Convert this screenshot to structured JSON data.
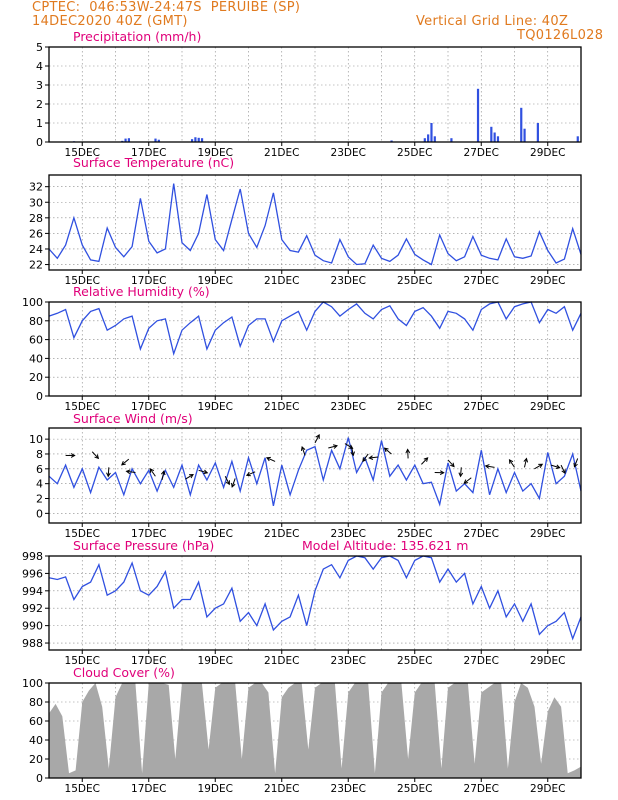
{
  "header": {
    "line1_left": "CPTEC:  046:53W-24:47S  PERUIBE (SP)",
    "line2_left": "14DEC2020 40Z (GMT)",
    "line1_right": "Vertical Grid Line: 40Z",
    "line2_right": "TQ0126L028"
  },
  "colors": {
    "title": "#e0007a",
    "header": "#e07a1f",
    "series": "#3050e0",
    "cloud": "#a8a8a8",
    "grid": "#888888"
  },
  "x_axis": {
    "start": "14DEC2020",
    "end": "29DEC2020",
    "tick_labels": [
      "15DEC",
      "17DEC",
      "19DEC",
      "21DEC",
      "23DEC",
      "25DEC",
      "27DEC",
      "29DEC"
    ]
  },
  "chart_data": [
    {
      "name": "precipitation",
      "type": "bar",
      "title": "Precipitation (mm/h)",
      "ylim": [
        0,
        5
      ],
      "yticks": [
        0,
        1,
        2,
        3,
        4,
        5
      ],
      "x_unit": "days since 14DEC 00Z",
      "points": [
        [
          0.75,
          0.04
        ],
        [
          2.2,
          0.06
        ],
        [
          2.3,
          0.18
        ],
        [
          2.4,
          0.2
        ],
        [
          3.2,
          0.18
        ],
        [
          3.3,
          0.12
        ],
        [
          4.3,
          0.15
        ],
        [
          4.4,
          0.25
        ],
        [
          4.5,
          0.22
        ],
        [
          4.6,
          0.2
        ],
        [
          10.3,
          0.08
        ],
        [
          11.3,
          0.2
        ],
        [
          11.4,
          0.4
        ],
        [
          11.5,
          1.0
        ],
        [
          11.6,
          0.3
        ],
        [
          12.1,
          0.2
        ],
        [
          12.9,
          2.8
        ],
        [
          13.3,
          0.8
        ],
        [
          13.4,
          0.5
        ],
        [
          13.5,
          0.3
        ],
        [
          14.2,
          1.8
        ],
        [
          14.3,
          0.7
        ],
        [
          14.7,
          1.0
        ],
        [
          15.9,
          0.3
        ]
      ]
    },
    {
      "name": "temperature",
      "type": "line",
      "title": "Surface Temperature (nC)",
      "ylim": [
        21.3,
        33.5
      ],
      "yticks": [
        22,
        24,
        26,
        28,
        30,
        32
      ],
      "x": [
        0,
        0.25,
        0.5,
        0.75,
        1.0,
        1.25,
        1.5,
        1.75,
        2.0,
        2.25,
        2.5,
        2.75,
        3.0,
        3.25,
        3.5,
        3.75,
        4.0,
        4.25,
        4.5,
        4.75,
        5.0,
        5.25,
        5.5,
        5.75,
        6.0,
        6.25,
        6.5,
        6.75,
        7.0,
        7.25,
        7.5,
        7.75,
        8.0,
        8.25,
        8.5,
        8.75,
        9.0,
        9.25,
        9.5,
        9.75,
        10.0,
        10.25,
        10.5,
        10.75,
        11.0,
        11.25,
        11.5,
        11.75,
        12.0,
        12.25,
        12.5,
        12.75,
        13.0,
        13.25,
        13.5,
        13.75,
        14.0,
        14.25,
        14.5,
        14.75,
        15.0,
        15.25,
        15.5,
        15.75,
        16.0
      ],
      "y": [
        24.0,
        22.8,
        24.5,
        28.0,
        24.5,
        22.6,
        22.4,
        26.7,
        24.2,
        23.0,
        24.3,
        30.5,
        25.0,
        23.5,
        24.0,
        32.4,
        24.8,
        23.8,
        26.0,
        31.0,
        25.2,
        23.8,
        27.8,
        31.7,
        26.0,
        24.2,
        27.0,
        31.2,
        25.2,
        23.8,
        23.6,
        25.7,
        23.2,
        22.5,
        22.2,
        25.2,
        23.0,
        22.0,
        22.1,
        24.5,
        22.8,
        22.4,
        23.2,
        25.3,
        23.3,
        22.6,
        22.0,
        25.8,
        23.4,
        22.5,
        23.0,
        25.6,
        23.2,
        22.8,
        22.6,
        25.3,
        23.0,
        22.8,
        23.1,
        26.2,
        23.8,
        22.2,
        22.7,
        26.6,
        23.3
      ]
    },
    {
      "name": "humidity",
      "type": "line",
      "title": "Relative Humidity (%)",
      "ylim": [
        0,
        100
      ],
      "yticks": [
        0,
        20,
        40,
        60,
        80,
        100
      ],
      "x": [
        0,
        0.25,
        0.5,
        0.75,
        1.0,
        1.25,
        1.5,
        1.75,
        2.0,
        2.25,
        2.5,
        2.75,
        3.0,
        3.25,
        3.5,
        3.75,
        4.0,
        4.25,
        4.5,
        4.75,
        5.0,
        5.25,
        5.5,
        5.75,
        6.0,
        6.25,
        6.5,
        6.75,
        7.0,
        7.25,
        7.5,
        7.75,
        8.0,
        8.25,
        8.5,
        8.75,
        9.0,
        9.25,
        9.5,
        9.75,
        10.0,
        10.25,
        10.5,
        10.75,
        11.0,
        11.25,
        11.5,
        11.75,
        12.0,
        12.25,
        12.5,
        12.75,
        13.0,
        13.25,
        13.5,
        13.75,
        14.0,
        14.25,
        14.5,
        14.75,
        15.0,
        15.25,
        15.5,
        15.75,
        16.0
      ],
      "y": [
        85,
        88,
        92,
        62,
        80,
        90,
        93,
        70,
        75,
        82,
        85,
        50,
        72,
        80,
        82,
        45,
        70,
        78,
        85,
        50,
        70,
        78,
        84,
        53,
        75,
        82,
        82,
        58,
        80,
        85,
        90,
        70,
        90,
        100,
        95,
        85,
        92,
        98,
        88,
        82,
        92,
        96,
        82,
        75,
        90,
        94,
        85,
        72,
        90,
        88,
        82,
        70,
        92,
        98,
        100,
        82,
        95,
        98,
        100,
        78,
        92,
        88,
        95,
        70,
        88
      ]
    },
    {
      "name": "wind",
      "type": "line",
      "title": "Surface Wind (m/s)",
      "ylim": [
        -1.3,
        11.5
      ],
      "yticks": [
        0,
        2,
        4,
        6,
        8,
        10
      ],
      "x": [
        0,
        0.25,
        0.5,
        0.75,
        1.0,
        1.25,
        1.5,
        1.75,
        2.0,
        2.25,
        2.5,
        2.75,
        3.0,
        3.25,
        3.5,
        3.75,
        4.0,
        4.25,
        4.5,
        4.75,
        5.0,
        5.25,
        5.5,
        5.75,
        6.0,
        6.25,
        6.5,
        6.75,
        7.0,
        7.25,
        7.5,
        7.75,
        8.0,
        8.25,
        8.5,
        8.75,
        9.0,
        9.25,
        9.5,
        9.75,
        10.0,
        10.25,
        10.5,
        10.75,
        11.0,
        11.25,
        11.5,
        11.75,
        12.0,
        12.25,
        12.5,
        12.75,
        13.0,
        13.25,
        13.5,
        13.75,
        14.0,
        14.25,
        14.5,
        14.75,
        15.0,
        15.25,
        15.5,
        15.75,
        16.0
      ],
      "y": [
        5.0,
        4.0,
        6.5,
        3.5,
        6.0,
        2.8,
        6.2,
        4.5,
        5.5,
        2.5,
        6.0,
        4.0,
        5.8,
        3.0,
        5.8,
        3.5,
        6.5,
        2.5,
        6.5,
        4.5,
        6.8,
        3.5,
        7.0,
        3.0,
        7.5,
        4.0,
        7.5,
        1.0,
        6.5,
        2.5,
        5.8,
        8.5,
        9.0,
        4.5,
        8.5,
        6.0,
        10.2,
        5.5,
        7.5,
        4.5,
        9.8,
        5.0,
        6.5,
        4.5,
        6.5,
        4.0,
        4.2,
        1.2,
        6.8,
        3.0,
        4.0,
        2.8,
        8.5,
        2.5,
        6.0,
        2.8,
        5.5,
        3.0,
        4.0,
        2.0,
        8.2,
        4.0,
        5.0,
        8.0,
        3.0
      ],
      "barbs": [
        [
          0.5,
          7.8
        ],
        [
          1.3,
          8.3
        ],
        [
          1.8,
          6.2
        ],
        [
          2.4,
          7.3
        ],
        [
          2.6,
          5.5
        ],
        [
          3.2,
          5.0
        ],
        [
          3.4,
          4.5
        ],
        [
          4.1,
          4.6
        ],
        [
          4.5,
          5.8
        ],
        [
          5.3,
          5.0
        ],
        [
          5.6,
          4.7
        ],
        [
          6.2,
          5.6
        ],
        [
          6.8,
          7.0
        ],
        [
          7.7,
          7.8
        ],
        [
          8.0,
          9.5
        ],
        [
          8.4,
          8.8
        ],
        [
          8.9,
          9.4
        ],
        [
          9.1,
          9.0
        ],
        [
          9.6,
          8.0
        ],
        [
          9.9,
          7.6
        ],
        [
          10.3,
          8.0
        ],
        [
          10.8,
          7.4
        ],
        [
          11.2,
          6.6
        ],
        [
          11.6,
          5.5
        ],
        [
          12.0,
          7.2
        ],
        [
          12.4,
          6.2
        ],
        [
          12.7,
          4.8
        ],
        [
          13.4,
          6.2
        ],
        [
          14.0,
          6.2
        ],
        [
          14.3,
          6.2
        ],
        [
          14.6,
          6.0
        ],
        [
          15.1,
          6.5
        ],
        [
          15.4,
          6.5
        ],
        [
          15.9,
          7.4
        ]
      ]
    },
    {
      "name": "pressure",
      "type": "line",
      "title": "Surface Pressure (hPa)",
      "annotation": "Model Altitude: 135.621 m",
      "ylim": [
        987.2,
        998
      ],
      "yticks": [
        988,
        990,
        992,
        994,
        996,
        998
      ],
      "x": [
        0,
        0.25,
        0.5,
        0.75,
        1.0,
        1.25,
        1.5,
        1.75,
        2.0,
        2.25,
        2.5,
        2.75,
        3.0,
        3.25,
        3.5,
        3.75,
        4.0,
        4.25,
        4.5,
        4.75,
        5.0,
        5.25,
        5.5,
        5.75,
        6.0,
        6.25,
        6.5,
        6.75,
        7.0,
        7.25,
        7.5,
        7.75,
        8.0,
        8.25,
        8.5,
        8.75,
        9.0,
        9.25,
        9.5,
        9.75,
        10.0,
        10.25,
        10.5,
        10.75,
        11.0,
        11.25,
        11.5,
        11.75,
        12.0,
        12.25,
        12.5,
        12.75,
        13.0,
        13.25,
        13.5,
        13.75,
        14.0,
        14.25,
        14.5,
        14.75,
        15.0,
        15.25,
        15.5,
        15.75,
        16.0
      ],
      "y": [
        995.5,
        995.3,
        995.6,
        993.0,
        994.5,
        995.0,
        997.0,
        993.5,
        994.0,
        995.0,
        997.2,
        994.0,
        993.5,
        994.5,
        996.2,
        992.0,
        993.0,
        993.0,
        995.0,
        991.0,
        992.0,
        992.5,
        994.3,
        990.5,
        991.5,
        990.0,
        992.5,
        989.5,
        990.5,
        991.0,
        993.5,
        990.0,
        994.0,
        996.5,
        997.0,
        995.5,
        997.5,
        998.0,
        997.8,
        996.5,
        997.8,
        998.0,
        997.5,
        995.5,
        997.5,
        998.0,
        997.8,
        995.0,
        996.5,
        995.0,
        996.0,
        992.5,
        994.5,
        992.0,
        994.0,
        991.0,
        992.5,
        990.5,
        992.5,
        989.0,
        990.0,
        990.5,
        991.5,
        988.5,
        991.0
      ]
    },
    {
      "name": "cloud",
      "type": "area",
      "title": "Cloud Cover (%)",
      "ylim": [
        0,
        100
      ],
      "yticks": [
        0,
        20,
        40,
        60,
        80,
        100
      ],
      "x": [
        0,
        0.2,
        0.4,
        0.6,
        0.8,
        1.0,
        1.2,
        1.4,
        1.6,
        1.8,
        2.0,
        2.2,
        2.4,
        2.6,
        2.8,
        3.0,
        3.2,
        3.4,
        3.6,
        3.8,
        4.0,
        4.2,
        4.4,
        4.6,
        4.8,
        5.0,
        5.2,
        5.4,
        5.6,
        5.8,
        6.0,
        6.2,
        6.4,
        6.6,
        6.8,
        7.0,
        7.2,
        7.4,
        7.6,
        7.8,
        8.0,
        8.2,
        8.4,
        8.6,
        8.8,
        9.0,
        9.2,
        9.4,
        9.6,
        9.8,
        10.0,
        10.2,
        10.4,
        10.6,
        10.8,
        11.0,
        11.2,
        11.4,
        11.6,
        11.8,
        12.0,
        12.2,
        12.4,
        12.6,
        12.8,
        13.0,
        13.2,
        13.4,
        13.6,
        13.8,
        14.0,
        14.2,
        14.4,
        14.6,
        14.8,
        15.0,
        15.2,
        15.4,
        15.6,
        15.8,
        16.0
      ],
      "y": [
        68,
        78,
        65,
        5,
        8,
        80,
        92,
        100,
        75,
        10,
        85,
        100,
        100,
        100,
        5,
        100,
        100,
        100,
        98,
        20,
        100,
        100,
        100,
        100,
        30,
        95,
        100,
        100,
        100,
        20,
        95,
        100,
        100,
        90,
        5,
        85,
        95,
        100,
        100,
        30,
        95,
        100,
        100,
        100,
        10,
        90,
        100,
        100,
        100,
        5,
        90,
        100,
        100,
        100,
        20,
        90,
        100,
        100,
        100,
        10,
        95,
        100,
        100,
        100,
        15,
        90,
        95,
        100,
        100,
        10,
        80,
        100,
        95,
        75,
        15,
        70,
        85,
        75,
        5,
        8,
        12
      ]
    }
  ]
}
